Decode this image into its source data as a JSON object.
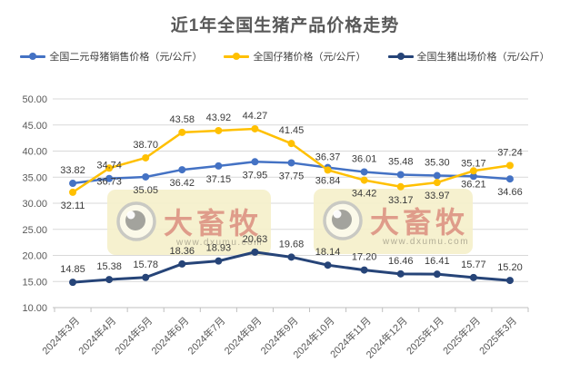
{
  "header": {
    "title": "近1年全国生猪产品价格走势"
  },
  "chart_data": {
    "type": "line",
    "title": "近1年全国生猪产品价格走势",
    "categories": [
      "2024年3月",
      "2024年4月",
      "2024年5月",
      "2024年6月",
      "2024年7月",
      "2024年8月",
      "2024年9月",
      "2024年10月",
      "2024年11月",
      "2024年12月",
      "2025年1月",
      "2025年2月",
      "2025年3月"
    ],
    "series": [
      {
        "name": "全国二元母猪销售价格（元/公斤）",
        "color": "#4472C4",
        "values": [
          33.82,
          34.74,
          35.05,
          36.42,
          37.15,
          37.95,
          37.75,
          36.84,
          36.01,
          35.48,
          35.3,
          35.17,
          34.66
        ],
        "label_side": [
          "above",
          "above",
          "below",
          "below",
          "below",
          "below",
          "below",
          "below",
          "above",
          "above",
          "above",
          "above",
          "below"
        ]
      },
      {
        "name": "全国仔猪价格（元/公斤）",
        "color": "#FFC000",
        "values": [
          32.11,
          36.73,
          38.7,
          43.58,
          43.92,
          44.27,
          41.45,
          36.37,
          34.42,
          33.17,
          33.97,
          36.21,
          37.24
        ],
        "label_side": [
          "below",
          "below",
          "above",
          "above",
          "above",
          "above",
          "above",
          "above",
          "below",
          "below",
          "below",
          "below",
          "above"
        ]
      },
      {
        "name": "全国生猪出场价格（元/公斤）",
        "color": "#264478",
        "values": [
          14.85,
          15.38,
          15.78,
          18.36,
          18.93,
          20.63,
          19.68,
          18.14,
          17.2,
          16.46,
          16.41,
          15.77,
          15.2
        ],
        "label_side": [
          "above",
          "above",
          "above",
          "above",
          "above",
          "above",
          "above",
          "above",
          "above",
          "above",
          "above",
          "above",
          "above"
        ]
      }
    ],
    "ylim": [
      10,
      50
    ],
    "yticks": [
      "50.00",
      "45.00",
      "40.00",
      "35.00",
      "30.00",
      "25.00",
      "20.00",
      "15.00",
      "10.00"
    ],
    "value_format": "0.00",
    "grid": true,
    "legend_position": "top",
    "colors": {
      "gridline": "#D9D9D9",
      "axis_line": "#BFBFBF",
      "axis_text": "#595959",
      "data_label_text": "#3A3A3A",
      "title_text": "#595959",
      "watermark_bg": "#F5EFCA",
      "watermark_brand": "#D0685F",
      "watermark_url": "#B3AE97"
    },
    "watermark": {
      "brand": "大畜牧",
      "url": "www.dxumu.com",
      "count": 2
    }
  }
}
